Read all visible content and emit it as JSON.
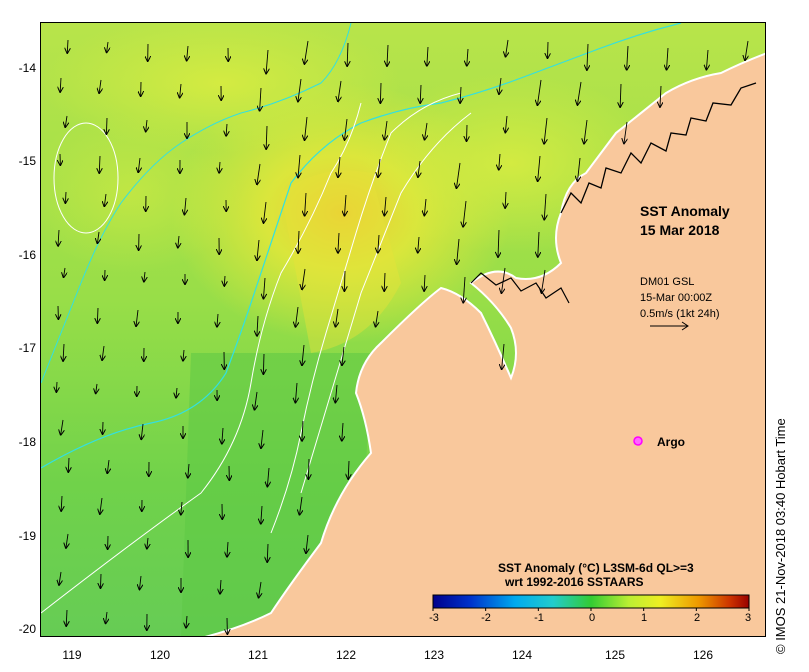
{
  "map": {
    "title_line1": "SST Anomaly",
    "title_line2": "15 Mar 2018",
    "wind_source": "DM01 GSL",
    "wind_time": "15-Mar 00:00Z",
    "wind_scale": "0.5m/s (1kt 24h)",
    "argo_label": "Argo",
    "legend_title": "SST Anomaly (°C) L3SM-6d QL>=3",
    "legend_subtitle": "wrt 1992-2016 SSTAARS",
    "credit": "© IMOS 21-Nov-2018 03:40 Hobart Time",
    "lat_labels": [
      "-14",
      "-15",
      "-16",
      "-17",
      "-18",
      "-19",
      "-20"
    ],
    "lon_labels": [
      "119",
      "120",
      "121",
      "122",
      "123",
      "124",
      "125",
      "126"
    ],
    "colorbar_labels": [
      "-3",
      "-2",
      "-1",
      "0",
      "1",
      "2",
      "3"
    ],
    "colorbar_range": [
      -3,
      3
    ],
    "colors": {
      "land": "#f9c89c",
      "sea_base": "#8fe048",
      "anomaly_high": "#e8e838",
      "contour_cyan": "#33e0e0",
      "argo": "#ff00ff"
    }
  }
}
